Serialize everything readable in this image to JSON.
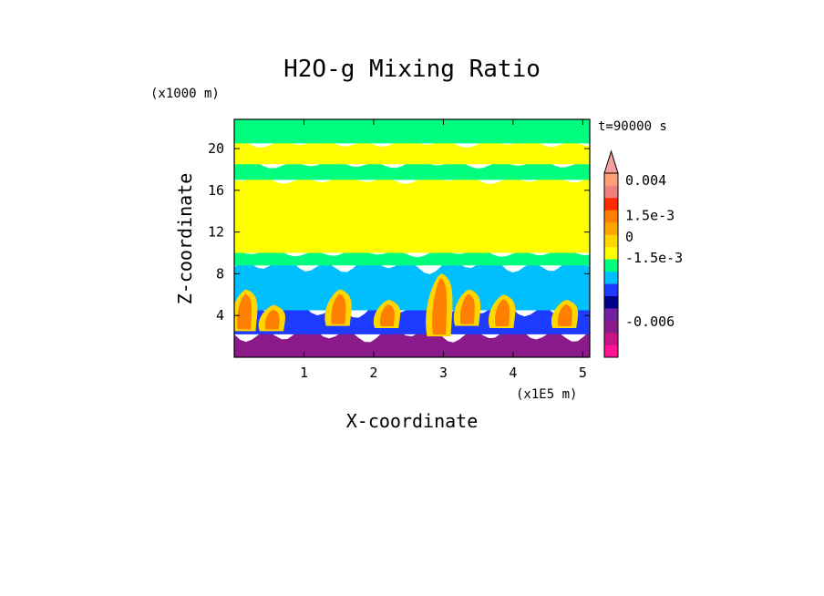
{
  "chart_data": {
    "type": "heatmap",
    "title": "H2O-g Mixing Ratio",
    "xlabel": "X-coordinate",
    "ylabel": "Z-coordinate",
    "x_unit": "(x1E5 m)",
    "y_unit": "(x1000 m)",
    "time_label": "t=90000 s",
    "xlim": [
      0.0,
      5.1
    ],
    "ylim": [
      0.0,
      22.8
    ],
    "x_ticks": [
      1,
      2,
      3,
      4,
      5
    ],
    "y_ticks": [
      4,
      8,
      12,
      16,
      20
    ],
    "colorbar": {
      "levels": [
        {
          "color": "#ff1493"
        },
        {
          "color": "#c71585"
        },
        {
          "color": "#8b1a8b"
        },
        {
          "color": "#7020a0"
        },
        {
          "color": "#00008b"
        },
        {
          "color": "#1e3cff"
        },
        {
          "color": "#00bfff"
        },
        {
          "color": "#00ff7f"
        },
        {
          "color": "#ffff00"
        },
        {
          "color": "#ffd700"
        },
        {
          "color": "#ffa500"
        },
        {
          "color": "#ff7f00"
        },
        {
          "color": "#ff2a00"
        },
        {
          "color": "#f08080"
        },
        {
          "color": "#ffa07a"
        }
      ],
      "labels": [
        {
          "text": "0.004",
          "at": 0.004
        },
        {
          "text": "1.5e-3",
          "at": 0.0015
        },
        {
          "text": "0",
          "at": 0.0
        },
        {
          "text": "-1.5e-3",
          "at": -0.0015
        },
        {
          "text": "-0.006",
          "at": -0.006
        }
      ]
    },
    "field_bands": [
      {
        "name": "lowest-moist-layer",
        "zmin": 0.0,
        "zmax": 2.2,
        "color": "#8b1a8b"
      },
      {
        "name": "low-blue-layer",
        "zmin": 2.2,
        "zmax": 4.5,
        "color": "#1e3cff"
      },
      {
        "name": "cyan-layer",
        "zmin": 4.5,
        "zmax": 8.8,
        "color": "#00bfff"
      },
      {
        "name": "green-layer",
        "zmin": 8.8,
        "zmax": 10.0,
        "color": "#00ff7f"
      },
      {
        "name": "mid-yellow-layer",
        "zmin": 10.0,
        "zmax": 17.0,
        "color": "#ffff00"
      },
      {
        "name": "upper-green-layer",
        "zmin": 17.0,
        "zmax": 18.5,
        "color": "#00ff7f"
      },
      {
        "name": "upper-yellow-layer",
        "zmin": 18.5,
        "zmax": 20.5,
        "color": "#ffff00"
      },
      {
        "name": "top-green-layer",
        "zmin": 20.5,
        "zmax": 22.8,
        "color": "#00ff7f"
      }
    ],
    "plumes": [
      {
        "x": 0.15,
        "zmin": 2.5,
        "zmax": 6.5
      },
      {
        "x": 0.55,
        "zmin": 2.5,
        "zmax": 5.0
      },
      {
        "x": 1.5,
        "zmin": 3.0,
        "zmax": 6.5
      },
      {
        "x": 2.2,
        "zmin": 2.8,
        "zmax": 5.5
      },
      {
        "x": 2.95,
        "zmin": 2.0,
        "zmax": 8.0
      },
      {
        "x": 3.35,
        "zmin": 3.0,
        "zmax": 6.5
      },
      {
        "x": 3.85,
        "zmin": 2.8,
        "zmax": 6.0
      },
      {
        "x": 4.75,
        "zmin": 2.8,
        "zmax": 5.5
      }
    ]
  }
}
